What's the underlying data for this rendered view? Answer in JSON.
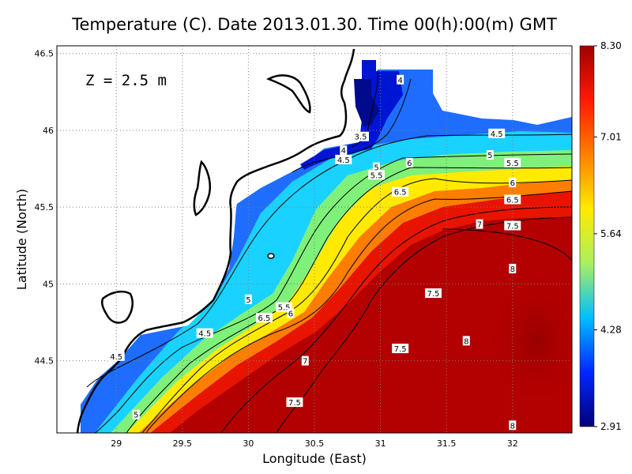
{
  "chart_data": {
    "type": "heatmap",
    "title": "Temperature (C). Date 2013.01.30. Time 00(h):00(m) GMT",
    "xlabel": "Longitude (East)",
    "ylabel": "Latitude (North)",
    "annotation": "Z = 2.5 m",
    "xlim": [
      28.55,
      32.45
    ],
    "ylim": [
      44.03,
      46.55
    ],
    "x_ticks": [
      29,
      29.5,
      30,
      30.5,
      31,
      31.5,
      32
    ],
    "x_tick_labels": [
      "29",
      "29.5",
      "30",
      "30.5",
      "31",
      "31.5",
      "32"
    ],
    "y_ticks": [
      44.5,
      45,
      45.5,
      46,
      46.5
    ],
    "y_tick_labels": [
      "44.5",
      "45",
      "45.5",
      "46",
      "46.5"
    ],
    "grid": true,
    "colorbar": {
      "min": 2.91,
      "max": 8.3,
      "ticks": [
        2.91,
        4.28,
        5.64,
        7.01,
        8.3
      ],
      "tick_labels": [
        "2.91",
        "4.28",
        "5.64",
        "7.01",
        "8.30"
      ],
      "colors": [
        "#00007a",
        "#0026ff",
        "#00bfff",
        "#aaf060",
        "#ffea00",
        "#ff8000",
        "#ff1a00",
        "#a00000"
      ]
    },
    "contour_levels": [
      3.5,
      4,
      4.5,
      5,
      5.5,
      6,
      6.5,
      7,
      7.5,
      8
    ],
    "contour_labels": [
      {
        "text": "4",
        "lon": 31.15,
        "lat": 46.33
      },
      {
        "text": "3.5",
        "lon": 30.85,
        "lat": 45.96
      },
      {
        "text": "4",
        "lon": 30.72,
        "lat": 45.87
      },
      {
        "text": "4.5",
        "lon": 30.72,
        "lat": 45.81
      },
      {
        "text": "4.5",
        "lon": 31.88,
        "lat": 45.98
      },
      {
        "text": "5",
        "lon": 31.83,
        "lat": 45.84
      },
      {
        "text": "5.5",
        "lon": 32.0,
        "lat": 45.79
      },
      {
        "text": "5",
        "lon": 30.97,
        "lat": 45.76
      },
      {
        "text": "5.5",
        "lon": 30.97,
        "lat": 45.71
      },
      {
        "text": "6",
        "lon": 31.22,
        "lat": 45.79
      },
      {
        "text": "6",
        "lon": 32.0,
        "lat": 45.66
      },
      {
        "text": "6.5",
        "lon": 31.15,
        "lat": 45.6
      },
      {
        "text": "6.5",
        "lon": 32.0,
        "lat": 45.55
      },
      {
        "text": "7",
        "lon": 31.75,
        "lat": 45.39
      },
      {
        "text": "7.5",
        "lon": 32.0,
        "lat": 45.38
      },
      {
        "text": "8",
        "lon": 32.0,
        "lat": 45.1
      },
      {
        "text": "7.5",
        "lon": 31.4,
        "lat": 44.94
      },
      {
        "text": "8",
        "lon": 31.65,
        "lat": 44.63
      },
      {
        "text": "7.5",
        "lon": 31.15,
        "lat": 44.58
      },
      {
        "text": "7",
        "lon": 30.43,
        "lat": 44.5
      },
      {
        "text": "7.5",
        "lon": 30.35,
        "lat": 44.23
      },
      {
        "text": "8",
        "lon": 32.0,
        "lat": 44.08
      },
      {
        "text": "5",
        "lon": 30.0,
        "lat": 44.9
      },
      {
        "text": "5.5",
        "lon": 30.27,
        "lat": 44.85
      },
      {
        "text": "6",
        "lon": 30.32,
        "lat": 44.81
      },
      {
        "text": "6.5",
        "lon": 30.12,
        "lat": 44.78
      },
      {
        "text": "4.5",
        "lon": 29.67,
        "lat": 44.68
      },
      {
        "text": "4.5",
        "lon": 29.0,
        "lat": 44.53
      },
      {
        "text": "5",
        "lon": 29.15,
        "lat": 44.15
      }
    ]
  }
}
